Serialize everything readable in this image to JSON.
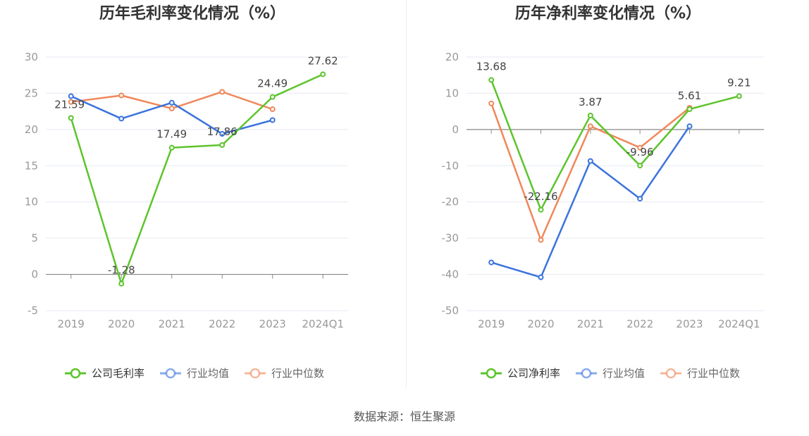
{
  "colors": {
    "company": "#5cc42b",
    "industry_avg": "#3b73de",
    "industry_median": "#f0875a",
    "grid": "#e6e9f2",
    "axis": "#999999",
    "tick_text": "#999999",
    "title_text": "#333333",
    "label_text": "#444444"
  },
  "footer": {
    "source": "数据来源：恒生聚源"
  },
  "chart_data": [
    {
      "type": "line",
      "title": "历年毛利率变化情况（%）",
      "categories": [
        "2019",
        "2020",
        "2021",
        "2022",
        "2023",
        "2024Q1"
      ],
      "ylim": [
        -5,
        30
      ],
      "yticks": [
        -5,
        0,
        5,
        10,
        15,
        20,
        25,
        30
      ],
      "grid": true,
      "legend_position": "bottom",
      "series": [
        {
          "name": "公司毛利率",
          "color_key": "company",
          "show_labels": true,
          "values": [
            21.59,
            -1.28,
            17.49,
            17.86,
            24.49,
            27.62
          ]
        },
        {
          "name": "行业均值",
          "color_key": "industry_avg",
          "show_labels": false,
          "values": [
            24.6,
            21.5,
            23.7,
            19.4,
            21.3,
            null
          ]
        },
        {
          "name": "行业中位数",
          "color_key": "industry_median",
          "show_labels": false,
          "values": [
            23.8,
            24.7,
            22.9,
            25.2,
            22.8,
            null
          ]
        }
      ],
      "data_labels": [
        "21.59",
        "-1.28",
        "17.49",
        "17.86",
        "24.49",
        "27.62"
      ]
    },
    {
      "type": "line",
      "title": "历年净利率变化情况（%）",
      "categories": [
        "2019",
        "2020",
        "2021",
        "2022",
        "2023",
        "2024Q1"
      ],
      "ylim": [
        -50,
        20
      ],
      "yticks": [
        -50,
        -40,
        -30,
        -20,
        -10,
        0,
        10,
        20
      ],
      "grid": true,
      "legend_position": "bottom",
      "series": [
        {
          "name": "公司净利率",
          "color_key": "company",
          "show_labels": true,
          "values": [
            13.68,
            -22.16,
            3.87,
            -9.96,
            5.61,
            9.21
          ]
        },
        {
          "name": "行业均值",
          "color_key": "industry_avg",
          "show_labels": false,
          "values": [
            -36.7,
            -40.8,
            -8.7,
            -19.1,
            0.9,
            null
          ]
        },
        {
          "name": "行业中位数",
          "color_key": "industry_median",
          "show_labels": false,
          "values": [
            7.2,
            -30.5,
            0.9,
            -5.0,
            6.0,
            null
          ]
        }
      ],
      "data_labels": [
        "13.68",
        "-22.16",
        "3.87",
        "-9.96",
        "5.61",
        "9.21"
      ]
    }
  ]
}
